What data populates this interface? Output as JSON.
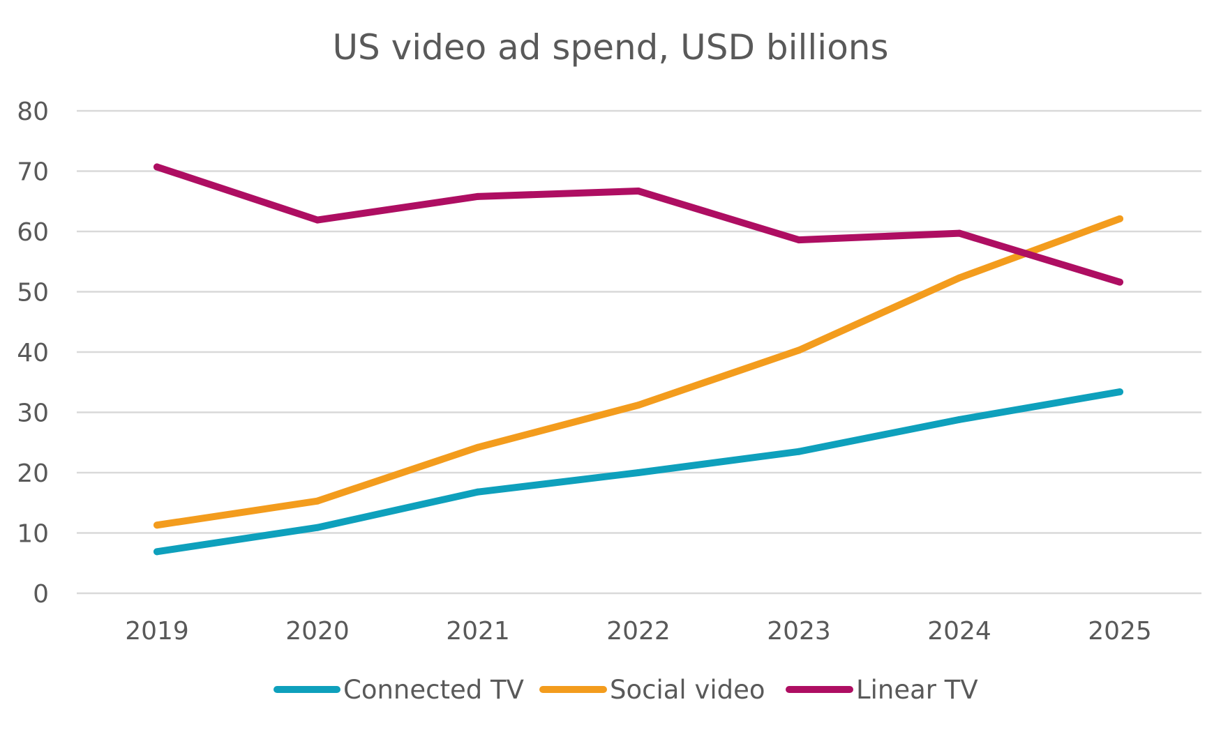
{
  "chart_data": {
    "type": "line",
    "title": "US video ad spend, USD billions",
    "x": [
      "2019",
      "2020",
      "2021",
      "2022",
      "2023",
      "2024",
      "2025"
    ],
    "xlabel": "",
    "ylabel": "",
    "ylim": [
      0,
      80
    ],
    "yticks": [
      "0",
      "10",
      "20",
      "30",
      "40",
      "50",
      "60",
      "70",
      "80"
    ],
    "grid": true,
    "legend_position": "bottom",
    "series": [
      {
        "name": "Connected TV",
        "color": "#0EA0BC",
        "values": [
          6.9,
          10.9,
          16.8,
          20.0,
          23.5,
          28.8,
          33.4
        ]
      },
      {
        "name": "Social video",
        "color": "#F39C1D",
        "values": [
          11.3,
          15.3,
          24.2,
          31.2,
          40.3,
          52.3,
          62.1
        ]
      },
      {
        "name": "Linear TV",
        "color": "#AE0E62",
        "values": [
          70.7,
          61.9,
          65.8,
          66.7,
          58.6,
          59.7,
          51.6
        ]
      }
    ]
  }
}
